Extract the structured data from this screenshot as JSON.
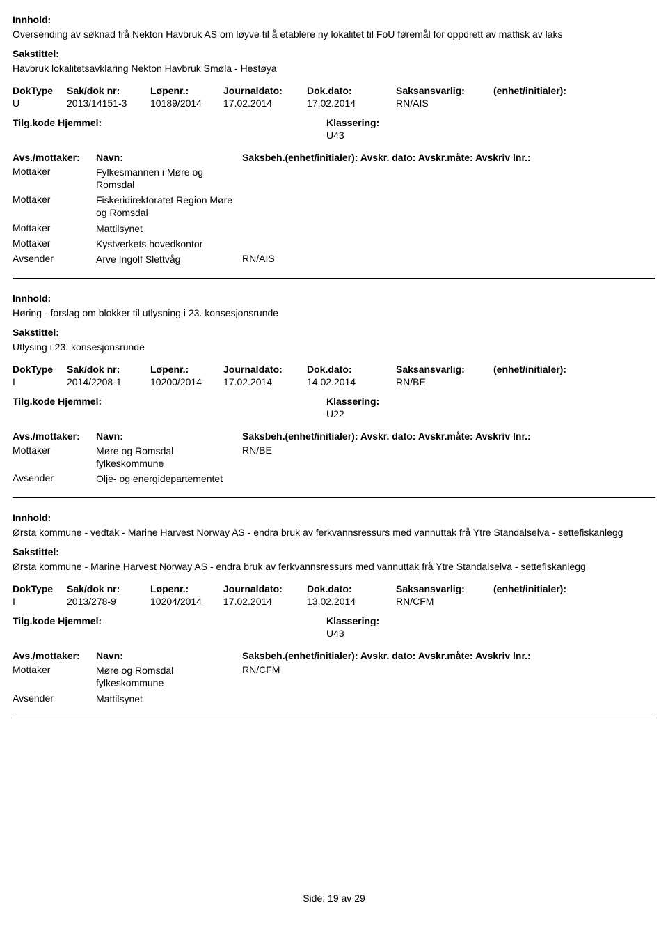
{
  "labels": {
    "innhold": "Innhold:",
    "sakstittel": "Sakstittel:",
    "doktype": "DokType",
    "sakdok": "Sak/dok nr:",
    "lopenr": "Løpenr.:",
    "journal": "Journaldato:",
    "dokdato": "Dok.dato:",
    "saksansvarlig": "Saksansvarlig:",
    "enhet": "(enhet/initialer):",
    "tilgkode": "Tilg.kode",
    "hjemmel": "Hjemmel:",
    "klassering": "Klassering:",
    "avsmottaker": "Avs./mottaker:",
    "navn": "Navn:",
    "saksbeh_long": "Saksbeh.(enhet/initialer): Avskr. dato: Avskr.måte: Avskriv lnr.:",
    "side": "Side:",
    "av": "av"
  },
  "page": {
    "current": "19",
    "total": "29"
  },
  "entries": [
    {
      "innhold": "Oversending av søknad frå Nekton Havbruk AS om løyve til å etablere ny lokalitet til FoU føremål for oppdrett av matfisk av laks",
      "sakstittel": "Havbruk lokalitetsavklaring Nekton Havbruk Smøla - Hestøya",
      "doktype": "U",
      "sakdok": "2013/14151-3",
      "lopenr": "10189/2014",
      "journaldato": "17.02.2014",
      "dokdato": "17.02.2014",
      "saksansvarlig": "RN/AIS",
      "klassering": "U43",
      "parties": [
        {
          "role": "Mottaker",
          "navn": "Fylkesmannen i Møre og Romsdal",
          "saksbeh": ""
        },
        {
          "role": "Mottaker",
          "navn": "Fiskeridirektoratet Region Møre og Romsdal",
          "saksbeh": ""
        },
        {
          "role": "Mottaker",
          "navn": "Mattilsynet",
          "saksbeh": ""
        },
        {
          "role": "Mottaker",
          "navn": "Kystverkets hovedkontor",
          "saksbeh": ""
        },
        {
          "role": "Avsender",
          "navn": "Arve Ingolf Slettvåg",
          "saksbeh": "RN/AIS"
        }
      ]
    },
    {
      "innhold": "Høring - forslag om blokker til utlysning i 23. konsesjonsrunde",
      "sakstittel": "Utlysing i 23. konsesjonsrunde",
      "doktype": "I",
      "sakdok": "2014/2208-1",
      "lopenr": "10200/2014",
      "journaldato": "17.02.2014",
      "dokdato": "14.02.2014",
      "saksansvarlig": "RN/BE",
      "klassering": "U22",
      "parties": [
        {
          "role": "Mottaker",
          "navn": "Møre og Romsdal fylkeskommune",
          "saksbeh": "RN/BE"
        },
        {
          "role": "Avsender",
          "navn": "Olje- og energidepartementet",
          "saksbeh": ""
        }
      ]
    },
    {
      "innhold": "Ørsta kommune - vedtak - Marine Harvest Norway AS - endra bruk av ferkvannsressurs med vannuttak frå Ytre Standalselva - settefiskanlegg",
      "sakstittel": "Ørsta kommune - Marine Harvest Norway AS - endra bruk av ferkvannsressurs med vannuttak frå Ytre Standalselva - settefiskanlegg",
      "doktype": "I",
      "sakdok": "2013/278-9",
      "lopenr": "10204/2014",
      "journaldato": "17.02.2014",
      "dokdato": "13.02.2014",
      "saksansvarlig": "RN/CFM",
      "klassering": "U43",
      "parties": [
        {
          "role": "Mottaker",
          "navn": "Møre og Romsdal fylkeskommune",
          "saksbeh": "RN/CFM"
        },
        {
          "role": "Avsender",
          "navn": "Mattilsynet",
          "saksbeh": ""
        }
      ]
    }
  ]
}
